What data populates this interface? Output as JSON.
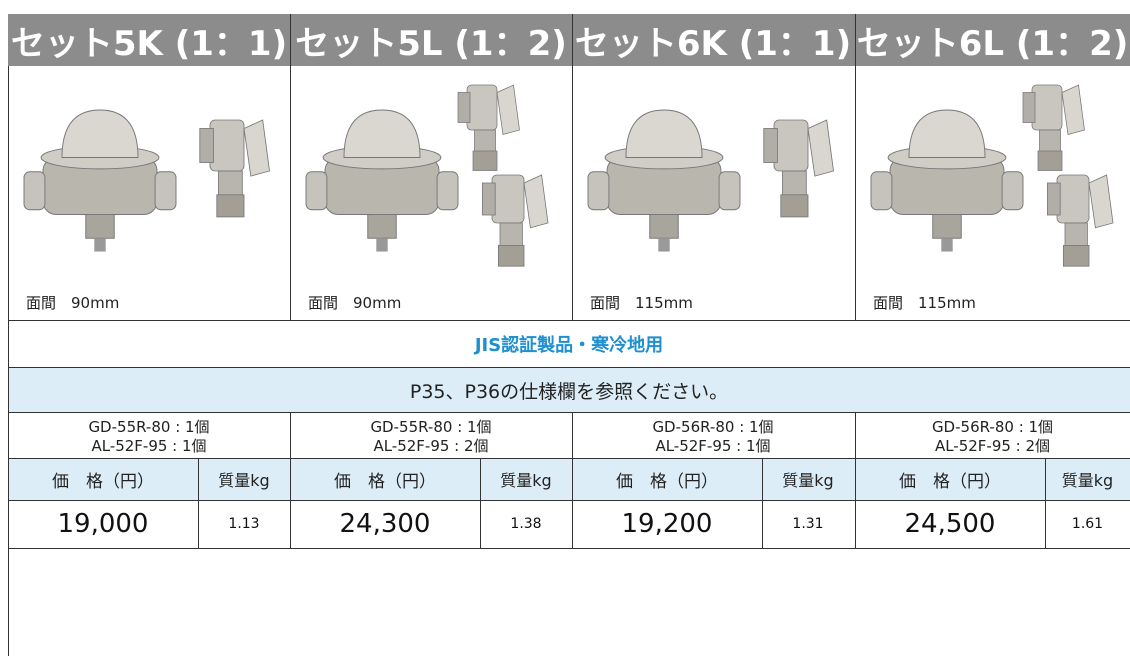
{
  "columns": [
    {
      "title": "セット5K (1：1)",
      "caption": "面間　90mm",
      "models": [
        "GD-55R-80 : 1個",
        "AL-52F-95 : 1個"
      ],
      "price": "19,000",
      "mass": "1.13"
    },
    {
      "title": "セット5L (1：2)",
      "caption": "面間　90mm",
      "models": [
        "GD-55R-80 : 1個",
        "AL-52F-95 : 2個"
      ],
      "price": "24,300",
      "mass": "1.38"
    },
    {
      "title": "セット6K (1：1)",
      "caption": "面間　115mm",
      "models": [
        "GD-56R-80 : 1個",
        "AL-52F-95 : 1個"
      ],
      "price": "19,200",
      "mass": "1.31"
    },
    {
      "title": "セット6L (1：2)",
      "caption": "面間　115mm",
      "models": [
        "GD-56R-80 : 1個",
        "AL-52F-95 : 2個"
      ],
      "price": "24,500",
      "mass": "1.61"
    }
  ],
  "certification": "JIS認証製品・寒冷地用",
  "note": "P35、P36の仕様欄を参照ください。",
  "price_header": "価　格（円）",
  "mass_header": "質量kg"
}
